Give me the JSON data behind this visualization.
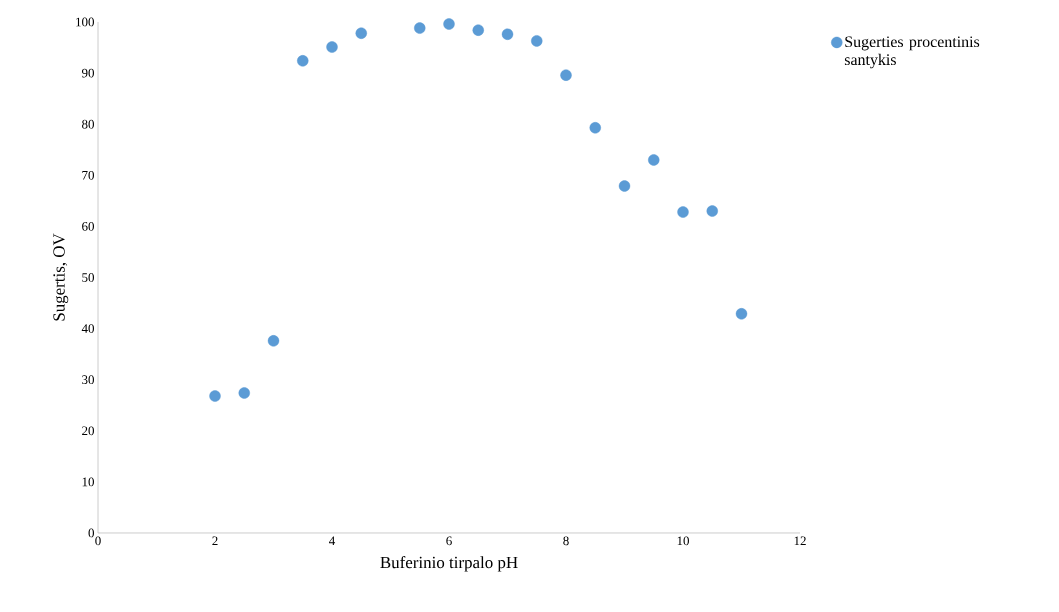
{
  "chart_data": {
    "type": "scatter",
    "xlabel": "Buferinio tirpalo pH",
    "ylabel": "Sugertis, OV",
    "x": [
      2,
      2.5,
      3,
      3.5,
      4,
      4.5,
      5.5,
      6,
      6.5,
      7,
      7.5,
      8,
      8.5,
      9,
      9.5,
      10,
      10.5,
      11
    ],
    "series": [
      {
        "name": "Sugerties procentinis santykis",
        "color": "#5b9bd5",
        "values": [
          26.8,
          27.4,
          37.6,
          92.4,
          95.1,
          97.8,
          98.8,
          99.6,
          98.4,
          97.6,
          96.3,
          89.6,
          79.3,
          67.9,
          73.0,
          62.8,
          63.0,
          42.9
        ]
      }
    ],
    "xlim": [
      0,
      12
    ],
    "xticks": [
      0,
      2,
      4,
      6,
      8,
      10,
      12
    ],
    "ylim": [
      0,
      100
    ],
    "yticks": [
      0,
      10,
      20,
      30,
      40,
      50,
      60,
      70,
      80,
      90,
      100
    ],
    "legend": "right",
    "marker": "circle",
    "grid": false
  }
}
